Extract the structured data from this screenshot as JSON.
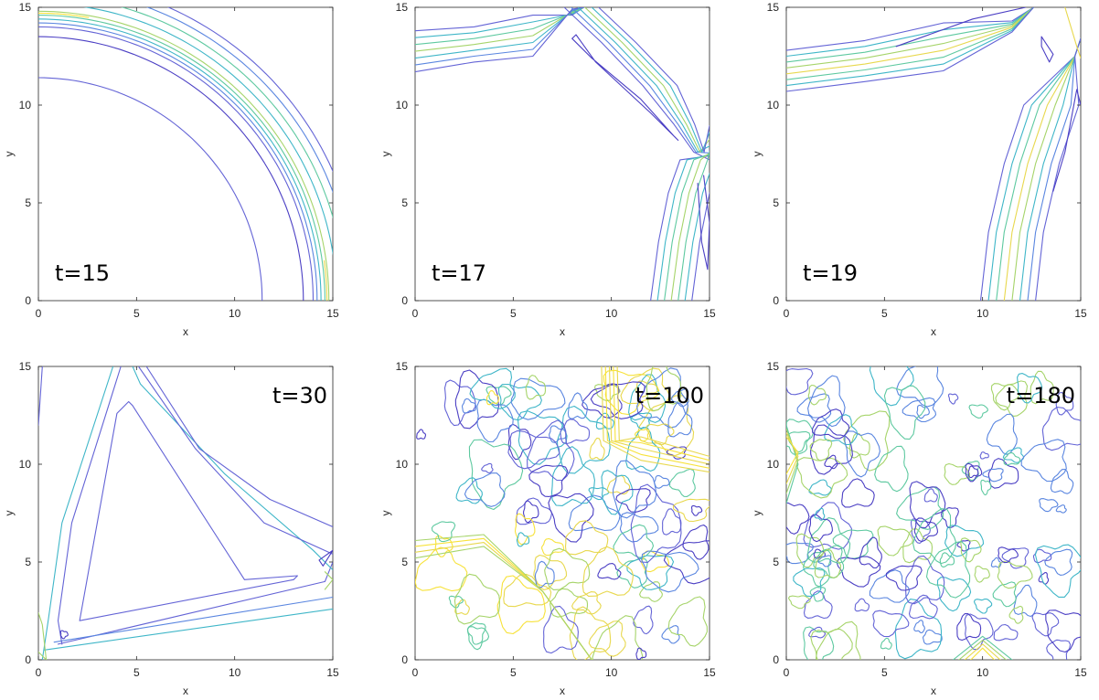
{
  "chart_data": [
    {
      "type": "contour",
      "annotation": "t=15",
      "xlabel": "x",
      "ylabel": "y",
      "xlim": [
        0,
        15
      ],
      "ylim": [
        0,
        15
      ],
      "xticks": [
        "0",
        "5",
        "10",
        "15"
      ],
      "yticks": [
        "0",
        "5",
        "10",
        "15"
      ],
      "pattern": "single quarter-circle ring front centred at the origin, radius about 14",
      "annotation_position": "bottom-left"
    },
    {
      "type": "contour",
      "annotation": "t=17",
      "xlabel": "x",
      "ylabel": "y",
      "xlim": [
        0,
        15
      ],
      "ylim": [
        0,
        15
      ],
      "xticks": [
        "0",
        "5",
        "10",
        "15"
      ],
      "yticks": [
        "0",
        "5",
        "10",
        "15"
      ],
      "pattern": "two fronts meeting near the right edge: band near top and band near right",
      "annotation_position": "bottom-left"
    },
    {
      "type": "contour",
      "annotation": "t=19",
      "xlabel": "x",
      "ylabel": "y",
      "xlim": [
        0,
        15
      ],
      "ylim": [
        0,
        15
      ],
      "xticks": [
        "0",
        "5",
        "10",
        "15"
      ],
      "yticks": [
        "0",
        "5",
        "10",
        "15"
      ],
      "pattern": "two fronts crossing near the top-right corner",
      "annotation_position": "bottom-left"
    },
    {
      "type": "contour",
      "annotation": "t=30",
      "xlabel": "x",
      "ylabel": "y",
      "xlim": [
        0,
        15
      ],
      "ylim": [
        0,
        15
      ],
      "xticks": [
        "0",
        "5",
        "10",
        "15"
      ],
      "yticks": [
        "0",
        "5",
        "10",
        "15"
      ],
      "pattern": "triangular enclosed region formed by three fronts",
      "annotation_position": "top-right"
    },
    {
      "type": "contour",
      "annotation": "t=100",
      "xlabel": "x",
      "ylabel": "y",
      "xlim": [
        0,
        15
      ],
      "ylim": [
        0,
        15
      ],
      "xticks": [
        "0",
        "5",
        "10",
        "15"
      ],
      "yticks": [
        "0",
        "5",
        "10",
        "15"
      ],
      "pattern": "turbulent field of many small closed contours",
      "annotation_position": "top-right"
    },
    {
      "type": "contour",
      "annotation": "t=180",
      "xlabel": "x",
      "ylabel": "y",
      "xlim": [
        0,
        15
      ],
      "ylim": [
        0,
        15
      ],
      "xticks": [
        "0",
        "5",
        "10",
        "15"
      ],
      "yticks": [
        "0",
        "5",
        "10",
        "15"
      ],
      "pattern": "fully disordered field of small closed contours",
      "annotation_position": "top-right"
    }
  ],
  "colors": {
    "contour_levels": [
      "#4b3fc4",
      "#6464d6",
      "#5a86e0",
      "#3fb6c8",
      "#5ec9a0",
      "#a6d46a",
      "#e8d84e",
      "#f7e23a"
    ],
    "axis": "#262626",
    "background": "#ffffff"
  }
}
